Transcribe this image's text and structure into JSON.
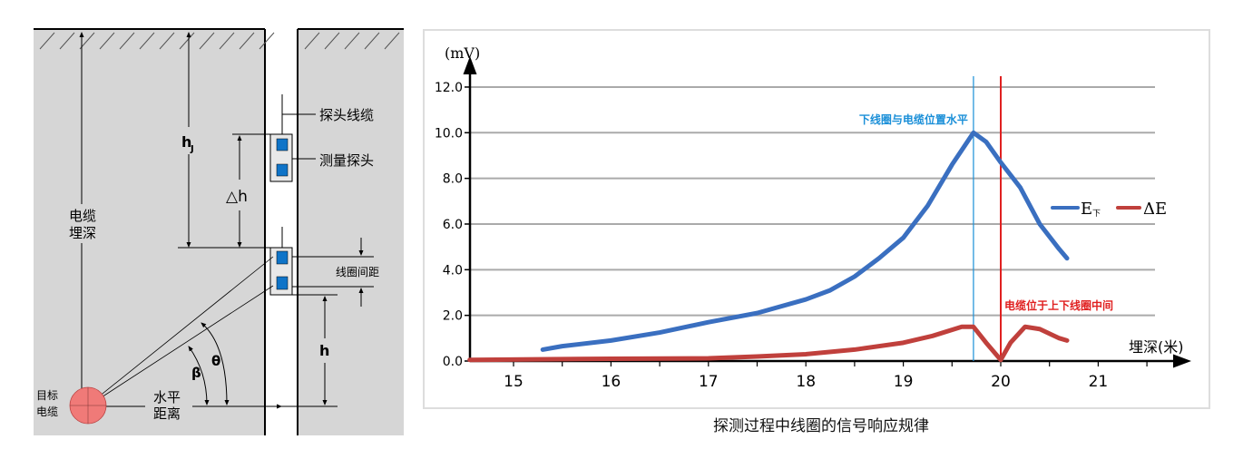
{
  "diagram": {
    "labels": {
      "probe_cable": "探头线缆",
      "probe": "测量探头",
      "coil_spacing": "线圈间距",
      "cable_depth_1": "电缆",
      "cable_depth_2": "埋深",
      "target_1": "目标",
      "target_2": "电缆",
      "horizontal_1": "水平",
      "horizontal_2": "距离",
      "hj": "h",
      "hj_sub": "J",
      "delta_h": "△h",
      "h": "h",
      "beta": "β",
      "theta": "θ"
    },
    "colors": {
      "ground": "#d6d6d6",
      "coil": "#0f74c8",
      "cable": "#f07a78"
    }
  },
  "chart_data": {
    "type": "line",
    "title": "",
    "caption": "探测过程中线圈的信号响应规律",
    "ylabel": "(mV)",
    "xlabel": "埋深(米)",
    "xlim": [
      14.55,
      21.9
    ],
    "ylim": [
      0,
      12.5
    ],
    "x_ticks": [
      15,
      16,
      17,
      18,
      19,
      20,
      21
    ],
    "y_ticks": [
      "0.0",
      "2.0",
      "4.0",
      "6.0",
      "8.0",
      "10.0",
      "12.0"
    ],
    "grid": true,
    "legend_position": "right",
    "series": [
      {
        "name": "E下",
        "name_main": "E",
        "name_sub": "下",
        "color": "#3a6fc0",
        "x": [
          15.3,
          15.5,
          16.0,
          16.5,
          17.0,
          17.5,
          18.0,
          18.25,
          18.5,
          18.75,
          19.0,
          19.25,
          19.5,
          19.72,
          19.85,
          20.0,
          20.2,
          20.4,
          20.6,
          20.68
        ],
        "y": [
          0.5,
          0.65,
          0.9,
          1.25,
          1.7,
          2.1,
          2.7,
          3.1,
          3.7,
          4.5,
          5.4,
          6.8,
          8.6,
          10.0,
          9.6,
          8.7,
          7.6,
          6.0,
          4.9,
          4.5
        ]
      },
      {
        "name": "ΔE",
        "color": "#c0403c",
        "x": [
          14.55,
          16.0,
          17.0,
          17.5,
          18.0,
          18.5,
          19.0,
          19.3,
          19.6,
          19.72,
          19.85,
          20.0,
          20.1,
          20.25,
          20.4,
          20.6,
          20.68
        ],
        "y": [
          0.05,
          0.1,
          0.12,
          0.2,
          0.3,
          0.5,
          0.8,
          1.1,
          1.5,
          1.5,
          0.8,
          0.05,
          0.8,
          1.5,
          1.4,
          1.0,
          0.9
        ]
      }
    ],
    "annotations": [
      {
        "x": 19.72,
        "text": "下线圈与电缆位置水平",
        "color": "#1a8fd8"
      },
      {
        "x": 20.0,
        "text": "电缆位于上下线圈中间",
        "color": "#e02020"
      }
    ]
  }
}
